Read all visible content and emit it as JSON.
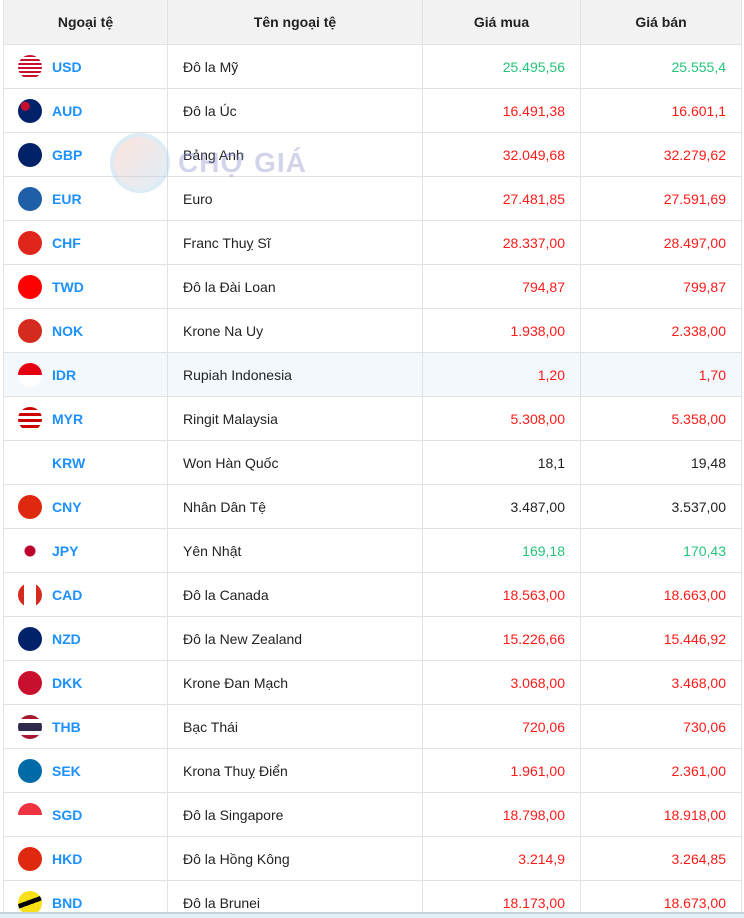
{
  "headers": [
    "Ngoại tệ",
    "Tên ngoại tệ",
    "Giá mua",
    "Giá bán"
  ],
  "watermark": "CHỢ GIÁ",
  "colors": {
    "code": "#1e90ff",
    "up": "#27c27a",
    "down": "#ff1a1a",
    "same": "#222222"
  },
  "rows": [
    {
      "code": "USD",
      "name": "Đô la Mỹ",
      "buy": "25.495,56",
      "sell": "25.555,4",
      "trend": "up",
      "flag": "us-flag-icon"
    },
    {
      "code": "AUD",
      "name": "Đô la Úc",
      "buy": "16.491,38",
      "sell": "16.601,1",
      "trend": "down",
      "flag": "au-flag-icon"
    },
    {
      "code": "GBP",
      "name": "Bảng Anh",
      "buy": "32.049,68",
      "sell": "32.279,62",
      "trend": "down",
      "flag": "gb-flag-icon"
    },
    {
      "code": "EUR",
      "name": "Euro",
      "buy": "27.481,85",
      "sell": "27.591,69",
      "trend": "down",
      "flag": "eu-flag-icon"
    },
    {
      "code": "CHF",
      "name": "Franc Thuỵ Sĩ",
      "buy": "28.337,00",
      "sell": "28.497,00",
      "trend": "down",
      "flag": "ch-flag-icon"
    },
    {
      "code": "TWD",
      "name": "Đô la Đài Loan",
      "buy": "794,87",
      "sell": "799,87",
      "trend": "down",
      "flag": "tw-flag-icon"
    },
    {
      "code": "NOK",
      "name": "Krone Na Uy",
      "buy": "1.938,00",
      "sell": "2.338,00",
      "trend": "down",
      "flag": "no-flag-icon"
    },
    {
      "code": "IDR",
      "name": "Rupiah Indonesia",
      "buy": "1,20",
      "sell": "1,70",
      "trend": "down",
      "flag": "id-flag-icon"
    },
    {
      "code": "MYR",
      "name": "Ringit Malaysia",
      "buy": "5.308,00",
      "sell": "5.358,00",
      "trend": "down",
      "flag": "my-flag-icon"
    },
    {
      "code": "KRW",
      "name": "Won Hàn Quốc",
      "buy": "18,1",
      "sell": "19,48",
      "trend": "same",
      "flag": "kr-flag-icon"
    },
    {
      "code": "CNY",
      "name": "Nhân Dân Tệ",
      "buy": "3.487,00",
      "sell": "3.537,00",
      "trend": "same",
      "flag": "cn-flag-icon"
    },
    {
      "code": "JPY",
      "name": "Yên Nhật",
      "buy": "169,18",
      "sell": "170,43",
      "trend": "up",
      "flag": "jp-flag-icon"
    },
    {
      "code": "CAD",
      "name": "Đô la Canada",
      "buy": "18.563,00",
      "sell": "18.663,00",
      "trend": "down",
      "flag": "ca-flag-icon"
    },
    {
      "code": "NZD",
      "name": "Đô la New Zealand",
      "buy": "15.226,66",
      "sell": "15.446,92",
      "trend": "down",
      "flag": "nz-flag-icon"
    },
    {
      "code": "DKK",
      "name": "Krone Đan Mạch",
      "buy": "3.068,00",
      "sell": "3.468,00",
      "trend": "down",
      "flag": "dk-flag-icon"
    },
    {
      "code": "THB",
      "name": "Bạc Thái",
      "buy": "720,06",
      "sell": "730,06",
      "trend": "down",
      "flag": "th-flag-icon"
    },
    {
      "code": "SEK",
      "name": "Krona Thuỵ Điển",
      "buy": "1.961,00",
      "sell": "2.361,00",
      "trend": "down",
      "flag": "se-flag-icon"
    },
    {
      "code": "SGD",
      "name": "Đô la Singapore",
      "buy": "18.798,00",
      "sell": "18.918,00",
      "trend": "down",
      "flag": "sg-flag-icon"
    },
    {
      "code": "HKD",
      "name": "Đô la Hồng Kông",
      "buy": "3.214,9",
      "sell": "3.264,85",
      "trend": "down",
      "flag": "hk-flag-icon"
    },
    {
      "code": "BND",
      "name": "Đô la Brunei",
      "buy": "18.173,00",
      "sell": "18.673,00",
      "trend": "down",
      "flag": "bn-flag-icon"
    }
  ]
}
